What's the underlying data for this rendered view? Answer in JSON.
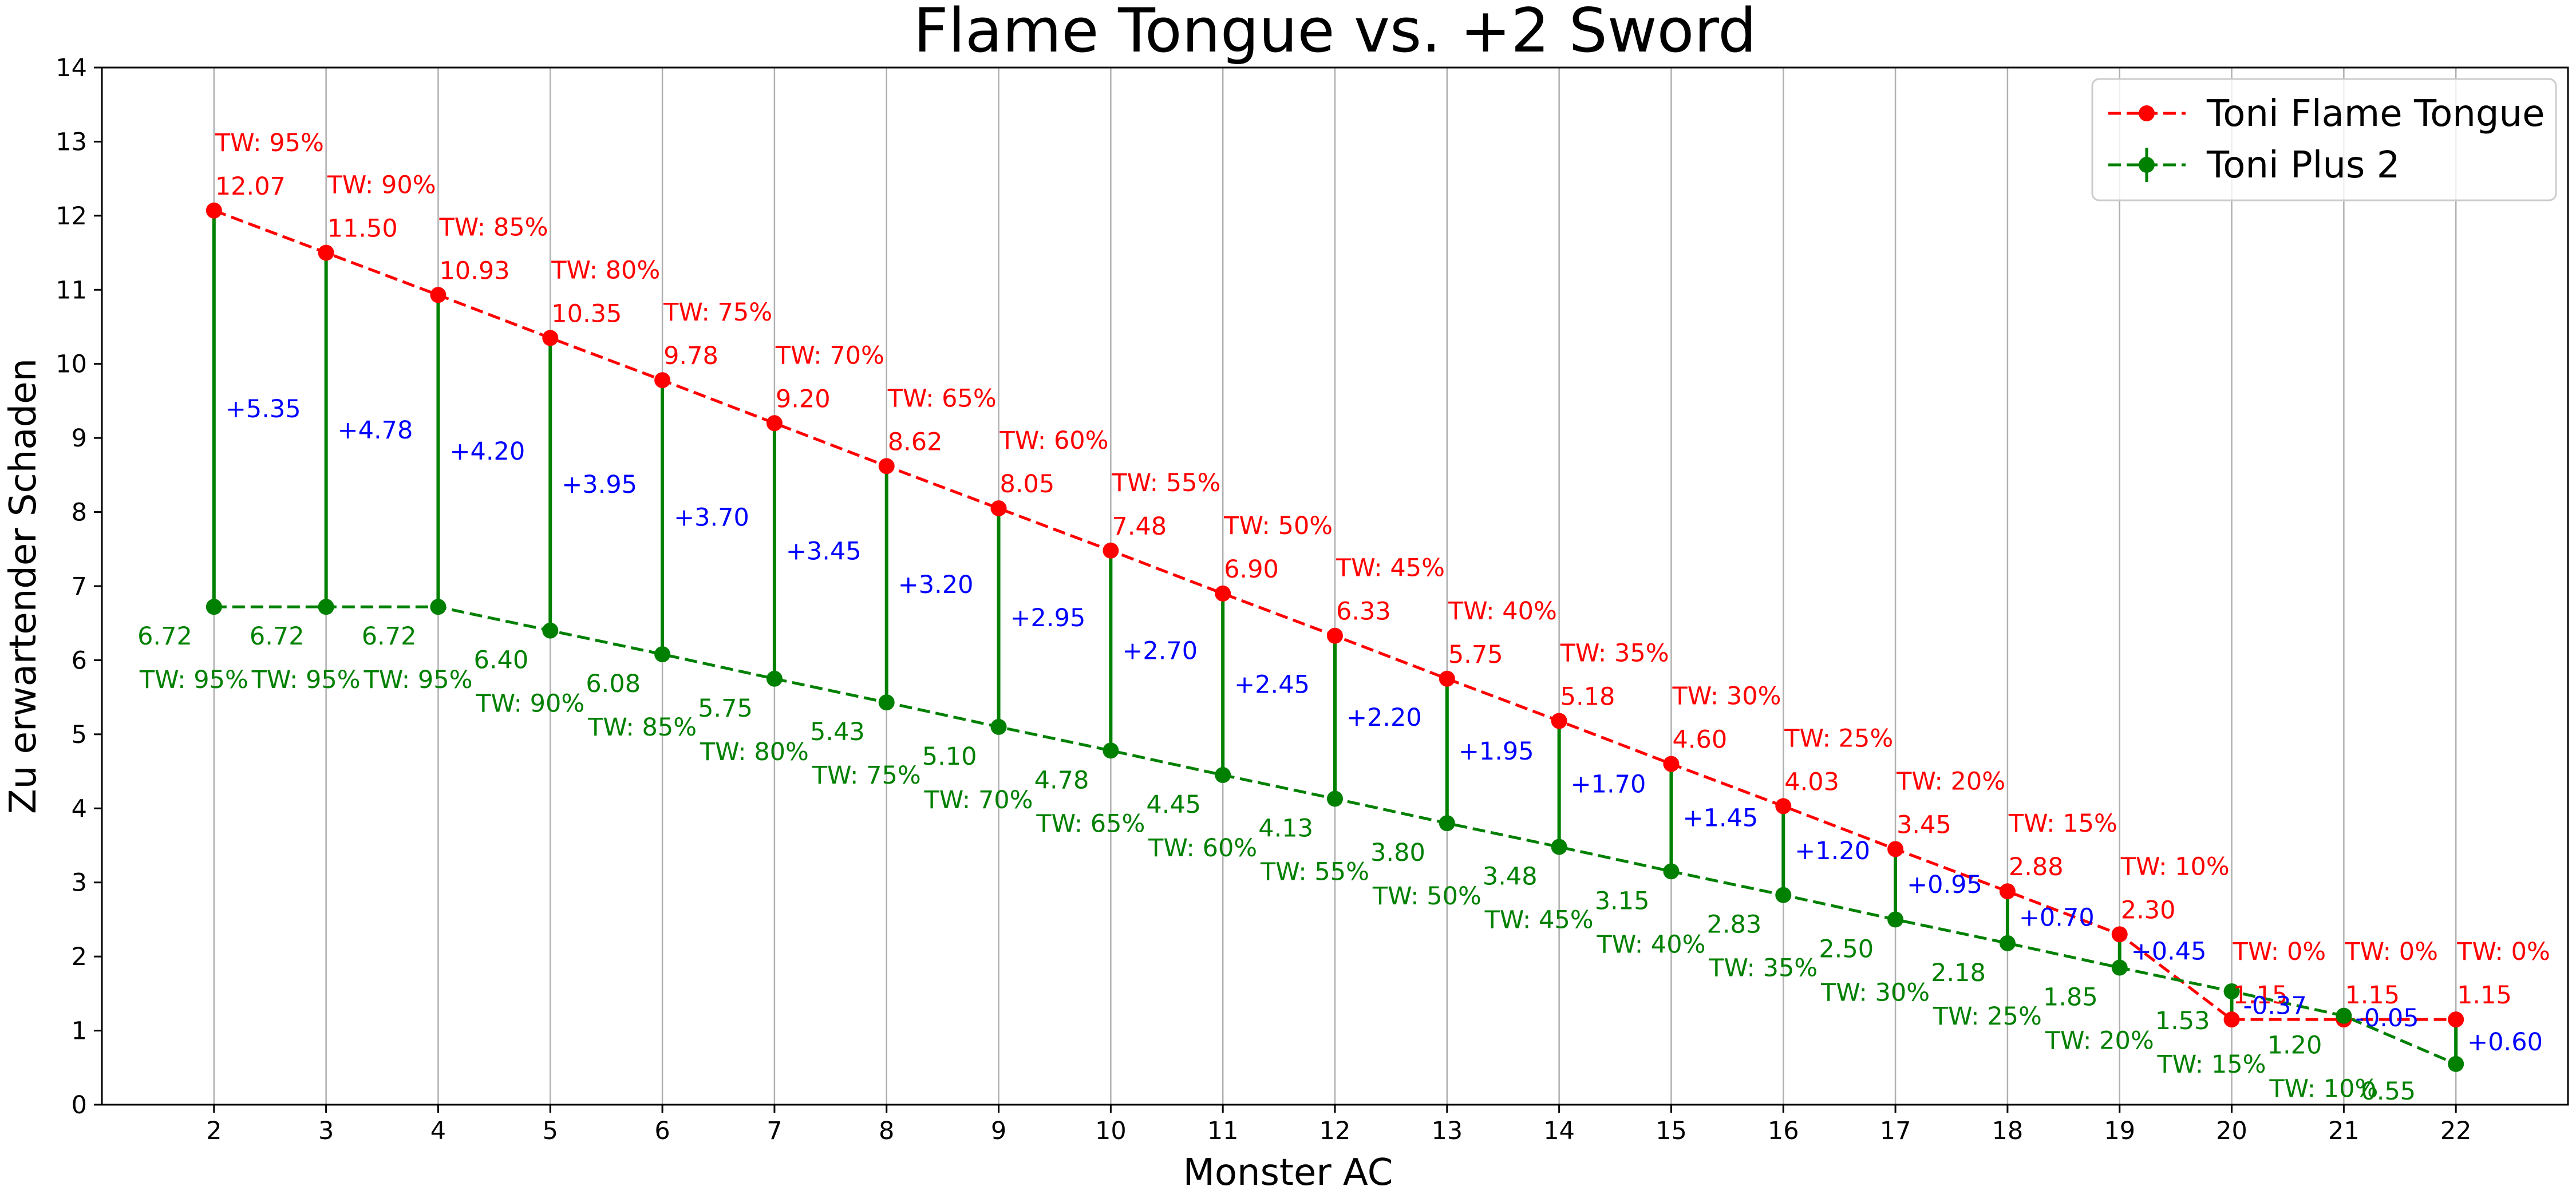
{
  "chart_data": {
    "type": "line",
    "title": "Flame Tongue vs. +2 Sword",
    "xlabel": "Monster AC",
    "ylabel": "Zu erwartender Schaden",
    "x": [
      2,
      3,
      4,
      5,
      6,
      7,
      8,
      9,
      10,
      11,
      12,
      13,
      14,
      15,
      16,
      17,
      18,
      19,
      20,
      21,
      22
    ],
    "xlim": [
      1,
      23
    ],
    "ylim": [
      0,
      14
    ],
    "yticks": [
      0,
      1,
      2,
      3,
      4,
      5,
      6,
      7,
      8,
      9,
      10,
      11,
      12,
      13,
      14
    ],
    "grid": "vertical",
    "legend_position": "top-right",
    "series": [
      {
        "name": "Toni Flame Tongue",
        "color": "#ff0000",
        "linestyle": "dashed",
        "values": [
          12.07,
          11.5,
          10.93,
          10.35,
          9.78,
          9.2,
          8.62,
          8.05,
          7.48,
          6.9,
          6.33,
          5.75,
          5.18,
          4.6,
          4.03,
          3.45,
          2.88,
          2.3,
          1.15,
          1.15,
          1.15
        ],
        "value_labels": [
          "12.07",
          "11.50",
          "10.93",
          "10.35",
          "9.78",
          "9.20",
          "8.62",
          "8.05",
          "7.48",
          "6.90",
          "6.33",
          "5.75",
          "5.18",
          "4.60",
          "4.03",
          "3.45",
          "2.88",
          "2.30",
          "1.15",
          "1.15",
          "1.15"
        ],
        "hit_labels": [
          "TW: 95%",
          "TW: 90%",
          "TW: 85%",
          "TW: 80%",
          "TW: 75%",
          "TW: 70%",
          "TW: 65%",
          "TW: 60%",
          "TW: 55%",
          "TW: 50%",
          "TW: 45%",
          "TW: 40%",
          "TW: 35%",
          "TW: 30%",
          "TW: 25%",
          "TW: 20%",
          "TW: 15%",
          "TW: 10%",
          "TW: 0%",
          "TW: 0%",
          "TW: 0%"
        ]
      },
      {
        "name": "Toni Plus 2",
        "color": "#008000",
        "linestyle": "dashed",
        "values": [
          6.72,
          6.72,
          6.72,
          6.4,
          6.08,
          5.75,
          5.43,
          5.1,
          4.78,
          4.45,
          4.13,
          3.8,
          3.48,
          3.15,
          2.83,
          2.5,
          2.18,
          1.85,
          1.53,
          1.2,
          0.55
        ],
        "value_labels": [
          "6.72",
          "6.72",
          "6.72",
          "6.40",
          "6.08",
          "5.75",
          "5.43",
          "5.10",
          "4.78",
          "4.45",
          "4.13",
          "3.80",
          "3.48",
          "3.15",
          "2.83",
          "2.50",
          "2.18",
          "1.85",
          "1.53",
          "1.20",
          "0.55"
        ],
        "hit_labels": [
          "TW: 95%",
          "TW: 95%",
          "TW: 95%",
          "TW: 90%",
          "TW: 85%",
          "TW: 80%",
          "TW: 75%",
          "TW: 70%",
          "TW: 65%",
          "TW: 60%",
          "TW: 55%",
          "TW: 50%",
          "TW: 45%",
          "TW: 40%",
          "TW: 35%",
          "TW: 30%",
          "TW: 25%",
          "TW: 20%",
          "TW: 15%",
          "TW: 10%",
          ""
        ]
      }
    ],
    "differences": {
      "color": "#0000ff",
      "connector_color": "#008000",
      "labels": [
        "+5.35",
        "+4.78",
        "+4.20",
        "+3.95",
        "+3.70",
        "+3.45",
        "+3.20",
        "+2.95",
        "+2.70",
        "+2.45",
        "+2.20",
        "+1.95",
        "+1.70",
        "+1.45",
        "+1.20",
        "+0.95",
        "+0.70",
        "+0.45",
        "-0.37",
        "-0.05",
        "+0.60"
      ]
    }
  }
}
